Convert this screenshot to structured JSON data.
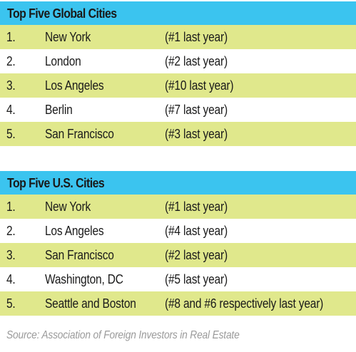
{
  "global": {
    "title": "Top Five Global Cities",
    "rows": [
      {
        "rank": "1.",
        "city": "New York",
        "previous": "(#1 last year)"
      },
      {
        "rank": "2.",
        "city": "London",
        "previous": "(#2 last year)"
      },
      {
        "rank": "3.",
        "city": "Los Angeles",
        "previous": "(#10 last year)"
      },
      {
        "rank": "4.",
        "city": "Berlin",
        "previous": "(#7 last year)"
      },
      {
        "rank": "5.",
        "city": "San Francisco",
        "previous": "(#3 last year)"
      }
    ]
  },
  "us": {
    "title": "Top Five U.S. Cities",
    "rows": [
      {
        "rank": "1.",
        "city": "New York",
        "previous": "(#1 last year)"
      },
      {
        "rank": "2.",
        "city": "Los Angeles",
        "previous": "(#4 last year)"
      },
      {
        "rank": "3.",
        "city": "San Francisco",
        "previous": "(#2 last year)"
      },
      {
        "rank": "4.",
        "city": "Washington, DC",
        "previous": "(#5 last year)"
      },
      {
        "rank": "5.",
        "city": "Seattle and Boston",
        "previous": "(#8 and #6 respectively last year)"
      }
    ]
  },
  "source": "Source: Association of Foreign Investors in Real Estate",
  "colors": {
    "header": "#3bc4ef",
    "row_highlight": "#e0e88c",
    "row_plain": "#ffffff",
    "source_text": "#9a9a9a"
  }
}
